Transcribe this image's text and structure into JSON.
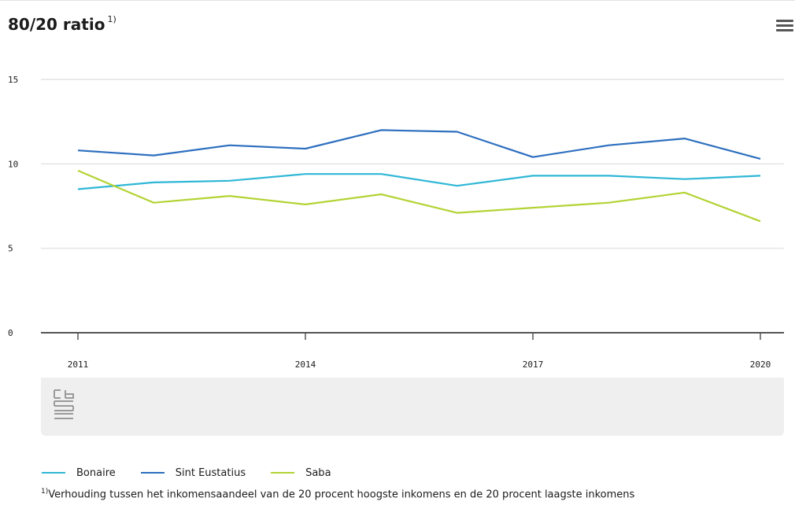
{
  "header": {
    "title": "80/20 ratio",
    "title_note": "1)",
    "menu_icon": "hamburger-menu-icon"
  },
  "logo": {
    "text": "cbs",
    "icon": "cbs-logo-icon"
  },
  "footnote": {
    "marker": "1)",
    "text": "Verhouding tussen het inkomensaandeel van de 20 procent hoogste inkomens en de 20 procent laagste inkomens"
  },
  "chart_data": {
    "type": "line",
    "title": "80/20 ratio",
    "x": [
      2011,
      2012,
      2013,
      2014,
      2015,
      2016,
      2017,
      2018,
      2019,
      2020
    ],
    "x_ticks": [
      "2011",
      "2014",
      "2017",
      "2020"
    ],
    "y_ticks": [
      "0",
      "5",
      "10",
      "15"
    ],
    "ylim": [
      0,
      15
    ],
    "grid": true,
    "legend_position": "bottom-left",
    "series": [
      {
        "name": "Bonaire",
        "color": "#2fb7d6",
        "values": [
          8.5,
          8.9,
          9.0,
          9.4,
          9.4,
          8.7,
          9.3,
          9.3,
          9.1,
          9.3
        ]
      },
      {
        "name": "Sint Eustatius",
        "color": "#2d6fbf",
        "values": [
          10.8,
          10.5,
          11.1,
          10.9,
          12.0,
          11.9,
          10.4,
          11.1,
          11.5,
          10.3
        ]
      },
      {
        "name": "Saba",
        "color": "#b3d334",
        "values": [
          9.6,
          7.7,
          8.1,
          7.6,
          8.2,
          7.1,
          7.4,
          7.7,
          8.3,
          6.6
        ]
      }
    ]
  }
}
